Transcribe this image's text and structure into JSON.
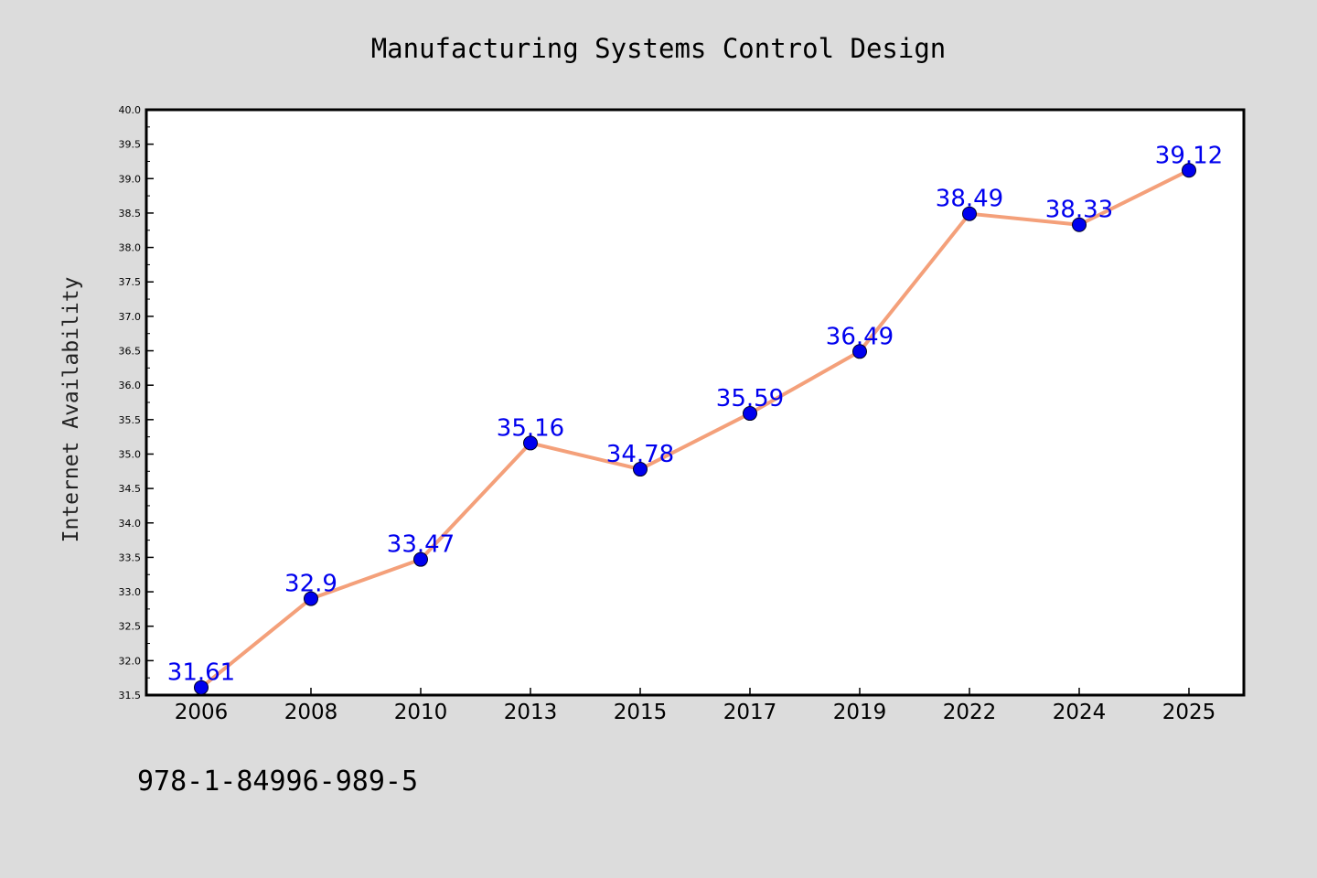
{
  "chart_data": {
    "type": "line",
    "title": "Manufacturing Systems Control Design",
    "xlabel": "",
    "ylabel": "Internet Availability",
    "categories": [
      "2006",
      "2008",
      "2010",
      "2013",
      "2015",
      "2017",
      "2019",
      "2022",
      "2024",
      "2025"
    ],
    "series": [
      {
        "values": [
          31.61,
          32.9,
          33.47,
          35.16,
          34.78,
          35.59,
          36.49,
          38.49,
          38.33,
          39.12
        ]
      }
    ],
    "data_labels": [
      "31.61",
      "32.9",
      "33.47",
      "35.16",
      "34.78",
      "35.59",
      "36.49",
      "38.49",
      "38.33",
      "39.12"
    ],
    "ylim": [
      31.5,
      40.0
    ],
    "y_ticks": [
      "31.5",
      "32.0",
      "32.5",
      "33.0",
      "33.5",
      "34.0",
      "34.5",
      "35.0",
      "35.5",
      "36.0",
      "36.5",
      "37.0",
      "37.5",
      "38.0",
      "38.5",
      "39.0",
      "39.5",
      "40.0"
    ],
    "grid": false,
    "legend": "none",
    "colors": {
      "line": "#f4a07a",
      "marker": "#0000ee",
      "label": "#0000ee",
      "background": "#dcdcdc",
      "plot_background": "#ffffff"
    }
  },
  "footnote": "978-1-84996-989-5"
}
